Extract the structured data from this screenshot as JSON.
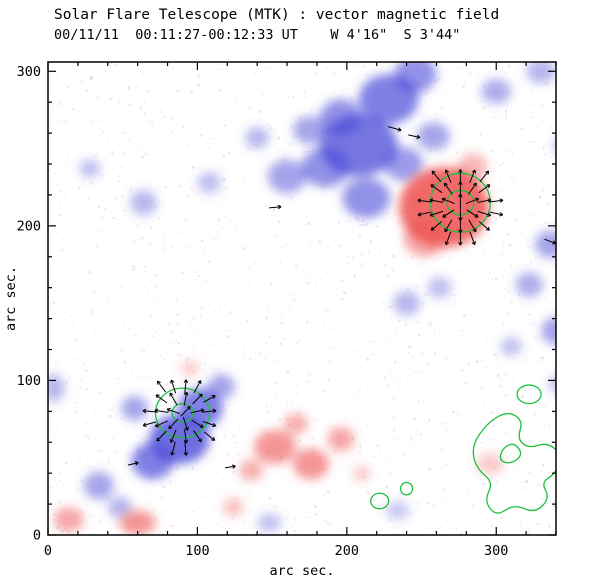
{
  "header": {
    "title": "Solar Flare Telescope (MTK) : vector magnetic field",
    "subtitle": "00/11/11  00:11:27-00:12:33 UT    W 4'16\"  S 3'44\""
  },
  "chart_data": {
    "type": "heatmap",
    "title": "Solar Flare Telescope (MTK) : vector magnetic field",
    "subtitle": "00/11/11  00:11:27-00:12:33 UT    W 4'16\"  S 3'44\"",
    "xlabel": "arc sec.",
    "ylabel": "arc sec.",
    "xlim": [
      0,
      340
    ],
    "ylim": [
      0,
      306
    ],
    "x_major_ticks": [
      0,
      100,
      200,
      300
    ],
    "y_major_ticks": [
      0,
      100,
      200,
      300
    ],
    "minor_tick_step": 20,
    "grid": false,
    "legend": "none",
    "colors": {
      "positive_polarity": "#ee5050",
      "negative_polarity": "#4a4ad8",
      "contour": "#1fbf3f",
      "vector": "#000000",
      "axis": "#000000",
      "background": "#ffffff"
    },
    "blobs_negative": [
      [
        208,
        252,
        26,
        20,
        0.75
      ],
      [
        228,
        282,
        20,
        16,
        0.7
      ],
      [
        246,
        298,
        14,
        12,
        0.6
      ],
      [
        186,
        238,
        16,
        13,
        0.6
      ],
      [
        160,
        232,
        13,
        11,
        0.5
      ],
      [
        175,
        262,
        11,
        9,
        0.5
      ],
      [
        213,
        218,
        16,
        13,
        0.6
      ],
      [
        238,
        240,
        13,
        11,
        0.55
      ],
      [
        258,
        258,
        11,
        9,
        0.5
      ],
      [
        196,
        270,
        14,
        12,
        0.6
      ],
      [
        140,
        257,
        8,
        7,
        0.4
      ],
      [
        108,
        228,
        8,
        7,
        0.35
      ],
      [
        64,
        215,
        9,
        8,
        0.4
      ],
      [
        28,
        237,
        7,
        6,
        0.35
      ],
      [
        300,
        287,
        10,
        8,
        0.45
      ],
      [
        330,
        300,
        10,
        8,
        0.4
      ],
      [
        240,
        150,
        9,
        8,
        0.4
      ],
      [
        262,
        160,
        8,
        7,
        0.35
      ],
      [
        336,
        188,
        10,
        9,
        0.5
      ],
      [
        322,
        162,
        9,
        8,
        0.45
      ],
      [
        340,
        132,
        10,
        9,
        0.5
      ],
      [
        310,
        122,
        7,
        6,
        0.35
      ],
      [
        345,
        252,
        7,
        6,
        0.35
      ],
      [
        88,
        62,
        20,
        16,
        0.8
      ],
      [
        70,
        48,
        14,
        12,
        0.7
      ],
      [
        102,
        82,
        15,
        13,
        0.7
      ],
      [
        116,
        96,
        9,
        8,
        0.5
      ],
      [
        58,
        82,
        9,
        8,
        0.5
      ],
      [
        34,
        32,
        10,
        9,
        0.5
      ],
      [
        48,
        18,
        8,
        7,
        0.4
      ],
      [
        4,
        95,
        7,
        9,
        0.4
      ],
      [
        148,
        8,
        8,
        6,
        0.35
      ],
      [
        234,
        16,
        8,
        6,
        0.3
      ],
      [
        342,
        98,
        7,
        6,
        0.35
      ]
    ],
    "blobs_positive": [
      [
        265,
        212,
        30,
        26,
        0.85
      ],
      [
        252,
        192,
        14,
        12,
        0.5
      ],
      [
        284,
        238,
        10,
        9,
        0.4
      ],
      [
        60,
        8,
        12,
        8,
        0.6
      ],
      [
        14,
        10,
        10,
        8,
        0.5
      ],
      [
        152,
        57,
        14,
        11,
        0.6
      ],
      [
        176,
        46,
        12,
        10,
        0.6
      ],
      [
        196,
        62,
        9,
        8,
        0.5
      ],
      [
        136,
        42,
        8,
        7,
        0.45
      ],
      [
        166,
        72,
        8,
        7,
        0.45
      ],
      [
        210,
        40,
        6,
        5,
        0.3
      ],
      [
        296,
        46,
        9,
        7,
        0.3
      ],
      [
        95,
        108,
        6,
        5,
        0.3
      ],
      [
        124,
        18,
        7,
        6,
        0.35
      ]
    ],
    "contour_ellipses": [
      [
        276,
        215,
        20,
        19
      ],
      [
        276,
        215,
        9,
        8
      ],
      [
        90,
        79,
        18,
        16
      ],
      [
        90,
        79,
        7,
        6
      ],
      [
        222,
        22,
        6,
        5
      ],
      [
        240,
        30,
        4,
        4
      ],
      [
        322,
        91,
        8,
        6
      ]
    ],
    "contour_polygons": [
      [
        [
          286,
          62
        ],
        [
          296,
          74
        ],
        [
          308,
          80
        ],
        [
          318,
          74
        ],
        [
          314,
          62
        ],
        [
          322,
          56
        ],
        [
          334,
          60
        ],
        [
          344,
          52
        ],
        [
          340,
          40
        ],
        [
          330,
          34
        ],
        [
          336,
          24
        ],
        [
          326,
          14
        ],
        [
          312,
          20
        ],
        [
          300,
          12
        ],
        [
          292,
          22
        ],
        [
          298,
          34
        ],
        [
          288,
          42
        ],
        [
          284,
          52
        ]
      ],
      [
        [
          304,
          56
        ],
        [
          312,
          60
        ],
        [
          318,
          52
        ],
        [
          310,
          46
        ],
        [
          302,
          48
        ]
      ]
    ],
    "vector_fields": [
      {
        "cx": 276,
        "cy": 213,
        "x0": 252,
        "x1": 302,
        "y0": 192,
        "y1": 236,
        "step": 8,
        "radius": 26,
        "len": 9
      },
      {
        "cx": 90,
        "cy": 78,
        "x0": 68,
        "x1": 112,
        "y0": 56,
        "y1": 100,
        "step": 8,
        "radius": 23,
        "len": 9
      }
    ],
    "stray_vectors": [
      [
        232,
        263,
        -15,
        9
      ],
      [
        245,
        258,
        -12,
        8
      ],
      [
        152,
        212,
        5,
        8
      ],
      [
        336,
        190,
        -20,
        8
      ],
      [
        122,
        44,
        8,
        7
      ],
      [
        57,
        46,
        12,
        7
      ]
    ]
  }
}
